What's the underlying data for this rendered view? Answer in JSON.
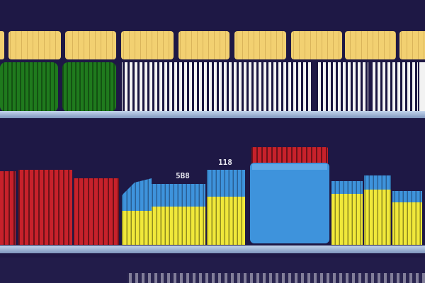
{
  "scene": {
    "colors": {
      "background": "#1e1845",
      "shelf": "#9fb6d8",
      "lid_yellow": "#f2d071",
      "jar_green": "#1f7a1d",
      "white_stripe": "#f2f2f2",
      "red": "#c7212b",
      "blue": "#3e93dc",
      "yellow": "#f0e83a"
    },
    "labels": {
      "left_label": "5B8",
      "right_label": "118"
    }
  }
}
